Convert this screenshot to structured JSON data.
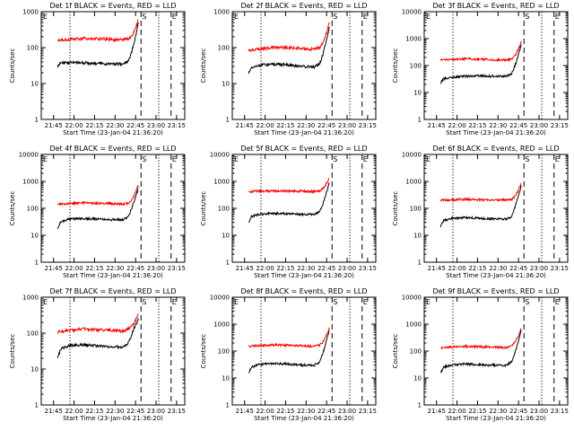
{
  "colors": {
    "events": "#000000",
    "lld": "#ff0000",
    "background": "#ffffff"
  },
  "common": {
    "xlabel": "Start Time (23-Jan-04 21:36:20)",
    "ylabel": "Counts/sec",
    "x_tick_labels": [
      "21:45",
      "22:00",
      "22:15",
      "22:30",
      "22:45",
      "23:00",
      "23:15"
    ],
    "y_tick_labels": [
      "1",
      "10",
      "100",
      "1000",
      "10000"
    ]
  },
  "chart_data": [
    {
      "type": "line",
      "title": "Det 1f BLACK = Events, RED = LLD",
      "xlabel": "Start Time (23-Jan-04 21:36:20)",
      "ylabel": "Counts/sec",
      "xlim_minutes_after_start": [
        0,
        105
      ],
      "ylim": [
        1,
        1000
      ],
      "y_scale": "log",
      "x_tick_minutes_after_start": [
        9,
        24,
        39,
        54,
        69,
        84,
        99
      ],
      "x_tick_labels": [
        "21:45",
        "22:00",
        "22:15",
        "22:30",
        "22:45",
        "23:00",
        "23:15"
      ],
      "y_ticks": [
        1,
        10,
        100,
        1000
      ],
      "y_tick_labels": [
        "1",
        "10",
        "100",
        "1000"
      ],
      "markers": [
        {
          "minute": 21,
          "style": "dotted"
        },
        {
          "minute": 73,
          "style": "dashed",
          "label": "S"
        },
        {
          "minute": 86,
          "style": "dotted"
        },
        {
          "minute": 95,
          "style": "dashed",
          "label": "E"
        }
      ],
      "corner_label": "E",
      "series": [
        {
          "name": "Events",
          "color": "#000000",
          "x": [
            12,
            14,
            20,
            30,
            40,
            50,
            60,
            64,
            67,
            70,
            71
          ],
          "y": [
            30,
            38,
            38,
            38,
            36,
            35,
            35,
            42,
            100,
            300,
            500
          ]
        },
        {
          "name": "LLD",
          "color": "#ff0000",
          "x": [
            12,
            20,
            30,
            40,
            50,
            60,
            64,
            67,
            70,
            71
          ],
          "y": [
            165,
            170,
            180,
            178,
            170,
            165,
            175,
            220,
            450,
            600
          ]
        }
      ]
    },
    {
      "type": "line",
      "title": "Det 2f BLACK = Events, RED = LLD",
      "xlabel": "Start Time (23-Jan-04 21:36:20)",
      "ylabel": "Counts/sec",
      "xlim_minutes_after_start": [
        0,
        105
      ],
      "ylim": [
        1,
        1000
      ],
      "y_scale": "log",
      "x_tick_minutes_after_start": [
        9,
        24,
        39,
        54,
        69,
        84,
        99
      ],
      "x_tick_labels": [
        "21:45",
        "22:00",
        "22:15",
        "22:30",
        "22:45",
        "23:00",
        "23:15"
      ],
      "y_ticks": [
        1,
        10,
        100,
        1000
      ],
      "y_tick_labels": [
        "1",
        "10",
        "100",
        "1000"
      ],
      "markers": [
        {
          "minute": 21,
          "style": "dotted"
        },
        {
          "minute": 73,
          "style": "dashed",
          "label": "S"
        },
        {
          "minute": 86,
          "style": "dotted"
        },
        {
          "minute": 95,
          "style": "dashed",
          "label": "E"
        }
      ],
      "corner_label": "E",
      "series": [
        {
          "name": "Events",
          "color": "#000000",
          "x": [
            12,
            14,
            20,
            30,
            40,
            50,
            60,
            64,
            67,
            70,
            71
          ],
          "y": [
            20,
            28,
            32,
            35,
            33,
            30,
            29,
            35,
            80,
            250,
            380
          ]
        },
        {
          "name": "LLD",
          "color": "#ff0000",
          "x": [
            12,
            20,
            30,
            40,
            50,
            60,
            64,
            67,
            70,
            71
          ],
          "y": [
            85,
            90,
            100,
            100,
            95,
            90,
            100,
            150,
            350,
            500
          ]
        }
      ]
    },
    {
      "type": "line",
      "title": "Det 3f BLACK = Events, RED = LLD",
      "xlabel": "Start Time (23-Jan-04 21:36:20)",
      "ylabel": "Counts/sec",
      "xlim_minutes_after_start": [
        0,
        105
      ],
      "ylim": [
        1,
        10000
      ],
      "y_scale": "log",
      "x_tick_minutes_after_start": [
        9,
        24,
        39,
        54,
        69,
        84,
        99
      ],
      "x_tick_labels": [
        "21:45",
        "22:00",
        "22:15",
        "22:30",
        "22:45",
        "23:00",
        "23:15"
      ],
      "y_ticks": [
        1,
        10,
        100,
        1000,
        10000
      ],
      "y_tick_labels": [
        "1",
        "10",
        "100",
        "1000",
        "10000"
      ],
      "markers": [
        {
          "minute": 21,
          "style": "dotted"
        },
        {
          "minute": 73,
          "style": "dashed",
          "label": "S"
        },
        {
          "minute": 86,
          "style": "dotted"
        },
        {
          "minute": 95,
          "style": "dashed",
          "label": "E"
        }
      ],
      "corner_label": "E",
      "series": [
        {
          "name": "Events",
          "color": "#000000",
          "x": [
            12,
            14,
            20,
            30,
            40,
            50,
            60,
            64,
            67,
            70,
            71
          ],
          "y": [
            22,
            32,
            36,
            40,
            42,
            40,
            40,
            50,
            120,
            400,
            600
          ]
        },
        {
          "name": "LLD",
          "color": "#ff0000",
          "x": [
            12,
            20,
            30,
            40,
            50,
            60,
            64,
            67,
            70,
            71
          ],
          "y": [
            160,
            170,
            175,
            170,
            165,
            160,
            175,
            250,
            550,
            800
          ]
        }
      ]
    },
    {
      "type": "line",
      "title": "Det 4f BLACK = Events, RED = LLD",
      "xlabel": "Start Time (23-Jan-04 21:36:20)",
      "ylabel": "Counts/sec",
      "xlim_minutes_after_start": [
        0,
        105
      ],
      "ylim": [
        1,
        10000
      ],
      "y_scale": "log",
      "x_tick_minutes_after_start": [
        9,
        24,
        39,
        54,
        69,
        84,
        99
      ],
      "x_tick_labels": [
        "21:45",
        "22:00",
        "22:15",
        "22:30",
        "22:45",
        "23:00",
        "23:15"
      ],
      "y_ticks": [
        1,
        10,
        100,
        1000,
        10000
      ],
      "y_tick_labels": [
        "1",
        "10",
        "100",
        "1000",
        "10000"
      ],
      "markers": [
        {
          "minute": 21,
          "style": "dotted"
        },
        {
          "minute": 73,
          "style": "dashed",
          "label": "S"
        },
        {
          "minute": 86,
          "style": "dotted"
        },
        {
          "minute": 95,
          "style": "dashed",
          "label": "E"
        }
      ],
      "corner_label": "E",
      "series": [
        {
          "name": "Events",
          "color": "#000000",
          "x": [
            12,
            14,
            20,
            30,
            40,
            50,
            60,
            64,
            67,
            70,
            71
          ],
          "y": [
            18,
            30,
            40,
            42,
            40,
            38,
            38,
            50,
            130,
            380,
            520
          ]
        },
        {
          "name": "LLD",
          "color": "#ff0000",
          "x": [
            12,
            20,
            30,
            40,
            50,
            60,
            64,
            67,
            70,
            71
          ],
          "y": [
            140,
            150,
            160,
            155,
            150,
            140,
            155,
            230,
            550,
            700
          ]
        }
      ]
    },
    {
      "type": "line",
      "title": "Det 5f BLACK = Events, RED = LLD",
      "xlabel": "Start Time (23-Jan-04 21:36:20)",
      "ylabel": "Counts/sec",
      "xlim_minutes_after_start": [
        0,
        105
      ],
      "ylim": [
        1,
        10000
      ],
      "y_scale": "log",
      "x_tick_minutes_after_start": [
        9,
        24,
        39,
        54,
        69,
        84,
        99
      ],
      "x_tick_labels": [
        "21:45",
        "22:00",
        "22:15",
        "22:30",
        "22:45",
        "23:00",
        "23:15"
      ],
      "y_ticks": [
        1,
        10,
        100,
        1000,
        10000
      ],
      "y_tick_labels": [
        "1",
        "10",
        "100",
        "1000",
        "10000"
      ],
      "markers": [
        {
          "minute": 21,
          "style": "dotted"
        },
        {
          "minute": 73,
          "style": "dashed",
          "label": "S"
        },
        {
          "minute": 86,
          "style": "dotted"
        },
        {
          "minute": 95,
          "style": "dashed",
          "label": "E"
        }
      ],
      "corner_label": "E",
      "series": [
        {
          "name": "Events",
          "color": "#000000",
          "x": [
            12,
            14,
            20,
            30,
            40,
            50,
            60,
            64,
            67,
            70,
            71
          ],
          "y": [
            30,
            50,
            60,
            65,
            62,
            60,
            60,
            75,
            180,
            600,
            900
          ]
        },
        {
          "name": "LLD",
          "color": "#ff0000",
          "x": [
            12,
            20,
            30,
            40,
            50,
            60,
            64,
            67,
            70,
            71
          ],
          "y": [
            420,
            430,
            440,
            440,
            430,
            420,
            450,
            600,
            1000,
            1300
          ]
        }
      ]
    },
    {
      "type": "line",
      "title": "Det 6f BLACK = Events, RED = LLD",
      "xlabel": "Start Time (23-Jan-04 21:36:20)",
      "ylabel": "Counts/sec",
      "xlim_minutes_after_start": [
        0,
        105
      ],
      "ylim": [
        1,
        10000
      ],
      "y_scale": "log",
      "x_tick_minutes_after_start": [
        9,
        24,
        39,
        54,
        69,
        84,
        99
      ],
      "x_tick_labels": [
        "21:45",
        "22:00",
        "22:15",
        "22:30",
        "22:45",
        "23:00",
        "23:15"
      ],
      "y_ticks": [
        1,
        10,
        100,
        1000,
        10000
      ],
      "y_tick_labels": [
        "1",
        "10",
        "100",
        "1000",
        "10000"
      ],
      "markers": [
        {
          "minute": 21,
          "style": "dotted"
        },
        {
          "minute": 73,
          "style": "dashed",
          "label": "S"
        },
        {
          "minute": 86,
          "style": "dotted"
        },
        {
          "minute": 95,
          "style": "dashed",
          "label": "E"
        }
      ],
      "corner_label": "E",
      "series": [
        {
          "name": "Events",
          "color": "#000000",
          "x": [
            12,
            14,
            20,
            30,
            40,
            50,
            60,
            64,
            67,
            70,
            71
          ],
          "y": [
            20,
            35,
            42,
            45,
            43,
            40,
            40,
            50,
            140,
            450,
            700
          ]
        },
        {
          "name": "LLD",
          "color": "#ff0000",
          "x": [
            12,
            20,
            30,
            40,
            50,
            60,
            64,
            67,
            70,
            71
          ],
          "y": [
            200,
            210,
            215,
            210,
            205,
            200,
            215,
            300,
            650,
            850
          ]
        }
      ]
    },
    {
      "type": "line",
      "title": "Det 7f BLACK = Events, RED = LLD",
      "xlabel": "Start Time (23-Jan-04 21:36:20)",
      "ylabel": "Counts/sec",
      "xlim_minutes_after_start": [
        0,
        105
      ],
      "ylim": [
        1,
        1000
      ],
      "y_scale": "log",
      "x_tick_minutes_after_start": [
        9,
        24,
        39,
        54,
        69,
        84,
        99
      ],
      "x_tick_labels": [
        "21:45",
        "22:00",
        "22:15",
        "22:30",
        "22:45",
        "23:00",
        "23:15"
      ],
      "y_ticks": [
        1,
        10,
        100,
        1000
      ],
      "y_tick_labels": [
        "1",
        "10",
        "100",
        "1000"
      ],
      "markers": [
        {
          "minute": 21,
          "style": "dotted"
        },
        {
          "minute": 73,
          "style": "dashed",
          "label": "S"
        },
        {
          "minute": 86,
          "style": "dotted"
        },
        {
          "minute": 95,
          "style": "dashed",
          "label": "E"
        }
      ],
      "corner_label": "E",
      "series": [
        {
          "name": "Events",
          "color": "#000000",
          "x": [
            12,
            14,
            20,
            30,
            40,
            50,
            60,
            64,
            67,
            70,
            71
          ],
          "y": [
            20,
            35,
            45,
            48,
            45,
            42,
            42,
            55,
            110,
            200,
            260
          ]
        },
        {
          "name": "LLD",
          "color": "#ff0000",
          "x": [
            12,
            20,
            30,
            40,
            50,
            60,
            64,
            67,
            70,
            71
          ],
          "y": [
            110,
            120,
            130,
            125,
            120,
            115,
            130,
            170,
            280,
            350
          ]
        }
      ]
    },
    {
      "type": "line",
      "title": "Det 8f BLACK = Events, RED = LLD",
      "xlabel": "Start Time (23-Jan-04 21:36:20)",
      "ylabel": "Counts/sec",
      "xlim_minutes_after_start": [
        0,
        105
      ],
      "ylim": [
        1,
        10000
      ],
      "y_scale": "log",
      "x_tick_minutes_after_start": [
        9,
        24,
        39,
        54,
        69,
        84,
        99
      ],
      "x_tick_labels": [
        "21:45",
        "22:00",
        "22:15",
        "22:30",
        "22:45",
        "23:00",
        "23:15"
      ],
      "y_ticks": [
        1,
        10,
        100,
        1000,
        10000
      ],
      "y_tick_labels": [
        "1",
        "10",
        "100",
        "1000",
        "10000"
      ],
      "markers": [
        {
          "minute": 21,
          "style": "dotted"
        },
        {
          "minute": 73,
          "style": "dashed",
          "label": "S"
        },
        {
          "minute": 86,
          "style": "dotted"
        },
        {
          "minute": 95,
          "style": "dashed",
          "label": "E"
        }
      ],
      "corner_label": "E",
      "series": [
        {
          "name": "Events",
          "color": "#000000",
          "x": [
            12,
            14,
            20,
            30,
            40,
            50,
            60,
            64,
            67,
            70,
            71
          ],
          "y": [
            15,
            25,
            32,
            35,
            33,
            30,
            30,
            40,
            110,
            380,
            600
          ]
        },
        {
          "name": "LLD",
          "color": "#ff0000",
          "x": [
            12,
            20,
            30,
            40,
            50,
            60,
            64,
            67,
            70,
            71
          ],
          "y": [
            150,
            160,
            170,
            165,
            160,
            150,
            165,
            250,
            550,
            750
          ]
        }
      ]
    },
    {
      "type": "line",
      "title": "Det 9f BLACK = Events, RED = LLD",
      "xlabel": "Start Time (23-Jan-04 21:36:20)",
      "ylabel": "Counts/sec",
      "xlim_minutes_after_start": [
        0,
        105
      ],
      "ylim": [
        1,
        10000
      ],
      "y_scale": "log",
      "x_tick_minutes_after_start": [
        9,
        24,
        39,
        54,
        69,
        84,
        99
      ],
      "x_tick_labels": [
        "21:45",
        "22:00",
        "22:15",
        "22:30",
        "22:45",
        "23:00",
        "23:15"
      ],
      "y_ticks": [
        1,
        10,
        100,
        1000,
        10000
      ],
      "y_tick_labels": [
        "1",
        "10",
        "100",
        "1000",
        "10000"
      ],
      "markers": [
        {
          "minute": 21,
          "style": "dotted"
        },
        {
          "minute": 73,
          "style": "dashed",
          "label": "S"
        },
        {
          "minute": 86,
          "style": "dotted"
        },
        {
          "minute": 95,
          "style": "dashed",
          "label": "E"
        }
      ],
      "corner_label": "E",
      "series": [
        {
          "name": "Events",
          "color": "#000000",
          "x": [
            12,
            14,
            20,
            30,
            40,
            50,
            60,
            64,
            67,
            70,
            71
          ],
          "y": [
            15,
            25,
            30,
            33,
            31,
            30,
            30,
            40,
            110,
            380,
            600
          ]
        },
        {
          "name": "LLD",
          "color": "#ff0000",
          "x": [
            12,
            20,
            30,
            40,
            50,
            60,
            64,
            67,
            70,
            71
          ],
          "y": [
            130,
            140,
            150,
            145,
            140,
            135,
            150,
            230,
            500,
            700
          ]
        }
      ]
    }
  ]
}
